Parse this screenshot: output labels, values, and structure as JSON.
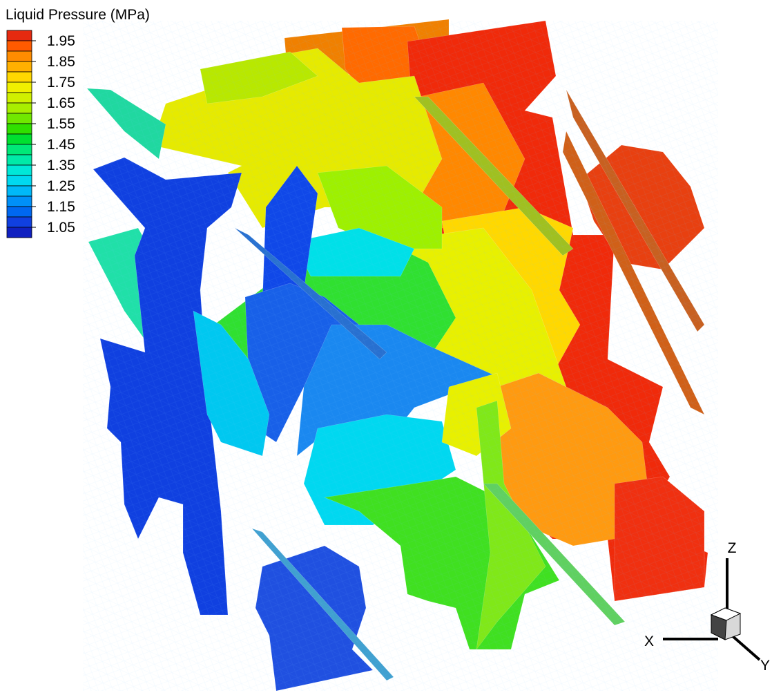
{
  "legend": {
    "title": "Liquid Pressure (MPa)",
    "labels": [
      1.95,
      1.85,
      1.75,
      1.65,
      1.55,
      1.45,
      1.35,
      1.25,
      1.15,
      1.05
    ],
    "colors": [
      "#e62a10",
      "#ff5a00",
      "#ff8c00",
      "#ffb000",
      "#ffd700",
      "#f0f000",
      "#d0f000",
      "#a8ee00",
      "#70e800",
      "#30e000",
      "#00e030",
      "#00e878",
      "#00eaa8",
      "#00e8d8",
      "#00d8f0",
      "#00b8f8",
      "#0090f8",
      "#0068f0",
      "#1040e0",
      "#1020c0"
    ]
  },
  "axes": {
    "x": "X",
    "y": "Y",
    "z": "Z"
  }
}
